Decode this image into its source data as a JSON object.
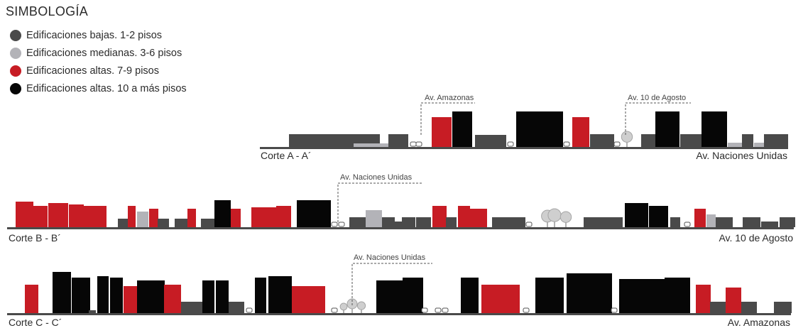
{
  "legend": {
    "title": "SIMBOLOGÍA",
    "items": [
      {
        "label": "Edificaciones bajas. 1-2 pisos",
        "color": "#4a4a4a"
      },
      {
        "label": "Edificaciones medianas. 3-6 pisos",
        "color": "#b3b3b8"
      },
      {
        "label": "Edificaciones altas. 7-9 pisos",
        "color": "#c71c24"
      },
      {
        "label": "Edificaciones altas. 10 a más pisos",
        "color": "#060606"
      }
    ]
  },
  "sections": [
    {
      "label": "Corte A - A´",
      "end_label": "Av. Naciones Unidas",
      "callouts": [
        "Av. Amazonas",
        "Av. 10 de Agosto"
      ]
    },
    {
      "label": "Corte B - B´",
      "end_label": "Av. 10 de Agosto",
      "callouts": [
        "Av. Naciones Unidas"
      ]
    },
    {
      "label": "Corte C - C´",
      "end_label": "Av. Amazonas",
      "callouts": [
        "Av. Naciones Unidas"
      ]
    }
  ]
}
